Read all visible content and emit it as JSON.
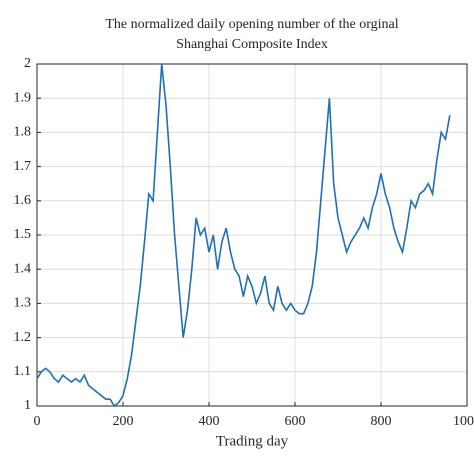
{
  "chart_data": {
    "type": "line",
    "title": "The normalized daily opening number of the orginal",
    "subtitle": "Shanghai Composite Index",
    "x_label": "Trading day",
    "x": [
      0,
      10,
      20,
      30,
      40,
      50,
      60,
      70,
      80,
      90,
      100,
      110,
      120,
      130,
      140,
      150,
      160,
      170,
      180,
      190,
      200,
      210,
      220,
      230,
      240,
      250,
      260,
      270,
      280,
      290,
      300,
      310,
      320,
      330,
      340,
      350,
      360,
      370,
      380,
      390,
      400,
      410,
      420,
      430,
      440,
      450,
      460,
      470,
      480,
      490,
      500,
      510,
      520,
      530,
      540,
      550,
      560,
      570,
      580,
      590,
      600,
      610,
      620,
      630,
      640,
      650,
      660,
      670,
      680,
      690,
      700,
      710,
      720,
      730,
      740,
      750,
      760,
      770,
      780,
      790,
      800,
      810,
      820,
      830,
      840,
      850,
      860,
      870,
      880,
      890,
      900,
      910,
      920,
      930,
      940,
      950,
      960
    ],
    "series": [
      {
        "name": "Shanghai Composite Index",
        "color": "#1f6fb8",
        "values": [
          1.08,
          1.1,
          1.11,
          1.1,
          1.08,
          1.07,
          1.09,
          1.08,
          1.07,
          1.08,
          1.07,
          1.09,
          1.06,
          1.05,
          1.04,
          1.03,
          1.02,
          1.02,
          1.0,
          1.01,
          1.03,
          1.08,
          1.15,
          1.25,
          1.35,
          1.48,
          1.62,
          1.6,
          1.8,
          2.0,
          1.88,
          1.7,
          1.5,
          1.35,
          1.2,
          1.28,
          1.4,
          1.55,
          1.5,
          1.52,
          1.45,
          1.5,
          1.4,
          1.48,
          1.52,
          1.45,
          1.4,
          1.38,
          1.32,
          1.38,
          1.35,
          1.3,
          1.33,
          1.38,
          1.3,
          1.28,
          1.35,
          1.3,
          1.28,
          1.3,
          1.28,
          1.27,
          1.27,
          1.3,
          1.35,
          1.45,
          1.6,
          1.75,
          1.9,
          1.65,
          1.55,
          1.5,
          1.45,
          1.48,
          1.5,
          1.52,
          1.55,
          1.52,
          1.58,
          1.62,
          1.68,
          1.62,
          1.58,
          1.52,
          1.48,
          1.45,
          1.52,
          1.6,
          1.58,
          1.62,
          1.63,
          1.65,
          1.62,
          1.72,
          1.8,
          1.78,
          1.85
        ]
      }
    ],
    "xlim": [
      0,
      1000
    ],
    "xticks": [
      0,
      200,
      400,
      600,
      800,
      1000
    ],
    "ylim": [
      1,
      2
    ],
    "yticks": [
      1,
      1.1,
      1.2,
      1.3,
      1.4,
      1.5,
      1.6,
      1.7,
      1.8,
      1.9,
      2
    ],
    "grid": true
  }
}
